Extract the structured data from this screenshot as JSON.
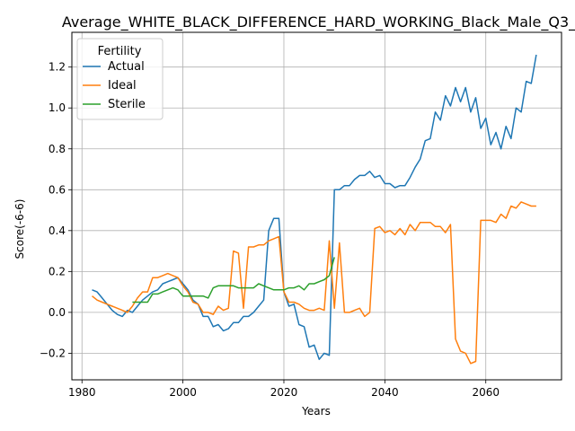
{
  "chart_data": {
    "type": "line",
    "title": "Average_WHITE_BLACK_DIFFERENCE_HARD_WORKING_Black_Male_Q3_",
    "xlabel": "Years",
    "ylabel": "Score(-6-6)",
    "xlim": [
      1978,
      2075
    ],
    "ylim": [
      -0.33,
      1.37
    ],
    "x_ticks": [
      1980,
      2000,
      2020,
      2040,
      2060
    ],
    "y_ticks": [
      -0.2,
      0.0,
      0.2,
      0.4,
      0.6,
      0.8,
      1.0,
      1.2
    ],
    "grid": true,
    "legend": {
      "title": "Fertility",
      "placement": "top-left"
    },
    "series": [
      {
        "name": "Actual",
        "color": "#1f77b4",
        "x": [
          1982,
          1983,
          1984,
          1985,
          1986,
          1987,
          1988,
          1989,
          1990,
          1991,
          1992,
          1993,
          1994,
          1995,
          1996,
          1997,
          1998,
          1999,
          2000,
          2001,
          2002,
          2003,
          2004,
          2005,
          2006,
          2007,
          2008,
          2009,
          2010,
          2011,
          2012,
          2013,
          2014,
          2015,
          2016,
          2017,
          2018,
          2019,
          2020,
          2021,
          2022,
          2023,
          2024,
          2025,
          2026,
          2027,
          2028,
          2029,
          2030,
          2031,
          2032,
          2033,
          2034,
          2035,
          2036,
          2037,
          2038,
          2039,
          2040,
          2041,
          2042,
          2043,
          2044,
          2045,
          2046,
          2047,
          2048,
          2049,
          2050,
          2051,
          2052,
          2053,
          2054,
          2055,
          2056,
          2057,
          2058,
          2059,
          2060,
          2061,
          2062,
          2063,
          2064,
          2065,
          2066,
          2067,
          2068,
          2069,
          2070
        ],
        "values": [
          0.11,
          0.1,
          0.07,
          0.04,
          0.01,
          -0.01,
          -0.02,
          0.01,
          0.0,
          0.03,
          0.06,
          0.08,
          0.1,
          0.11,
          0.14,
          0.15,
          0.16,
          0.17,
          0.14,
          0.11,
          0.06,
          0.04,
          -0.02,
          -0.02,
          -0.07,
          -0.06,
          -0.09,
          -0.08,
          -0.05,
          -0.05,
          -0.02,
          -0.02,
          0.0,
          0.03,
          0.06,
          0.4,
          0.46,
          0.46,
          0.1,
          0.03,
          0.04,
          -0.06,
          -0.07,
          -0.17,
          -0.16,
          -0.23,
          -0.2,
          -0.21,
          0.6,
          0.6,
          0.62,
          0.62,
          0.65,
          0.67,
          0.67,
          0.69,
          0.66,
          0.67,
          0.63,
          0.63,
          0.61,
          0.62,
          0.62,
          0.66,
          0.71,
          0.75,
          0.84,
          0.85,
          0.98,
          0.94,
          1.06,
          1.01,
          1.1,
          1.03,
          1.1,
          0.98,
          1.05,
          0.9,
          0.95,
          0.82,
          0.88,
          0.8,
          0.91,
          0.85,
          1.0,
          0.98,
          1.13,
          1.12,
          1.26
        ]
      },
      {
        "name": "Ideal",
        "color": "#ff7f0e",
        "x": [
          1982,
          1983,
          1984,
          1985,
          1986,
          1987,
          1988,
          1989,
          1990,
          1991,
          1992,
          1993,
          1994,
          1995,
          1996,
          1997,
          1998,
          1999,
          2000,
          2001,
          2002,
          2003,
          2004,
          2005,
          2006,
          2007,
          2008,
          2009,
          2010,
          2011,
          2012,
          2013,
          2014,
          2015,
          2016,
          2017,
          2018,
          2019,
          2020,
          2021,
          2022,
          2023,
          2024,
          2025,
          2026,
          2027,
          2028,
          2029,
          2030,
          2031,
          2032,
          2033,
          2034,
          2035,
          2036,
          2037,
          2038,
          2039,
          2040,
          2041,
          2042,
          2043,
          2044,
          2045,
          2046,
          2047,
          2048,
          2049,
          2050,
          2051,
          2052,
          2053,
          2054,
          2055,
          2056,
          2057,
          2058,
          2059,
          2060,
          2061,
          2062,
          2063,
          2064,
          2065,
          2066,
          2067,
          2068,
          2069,
          2070
        ],
        "values": [
          0.08,
          0.06,
          0.05,
          0.04,
          0.03,
          0.02,
          0.01,
          0.0,
          0.03,
          0.07,
          0.1,
          0.1,
          0.17,
          0.17,
          0.18,
          0.19,
          0.18,
          0.17,
          0.13,
          0.1,
          0.05,
          0.04,
          0.0,
          0.0,
          -0.01,
          0.03,
          0.01,
          0.02,
          0.3,
          0.29,
          0.02,
          0.32,
          0.32,
          0.33,
          0.33,
          0.35,
          0.36,
          0.37,
          0.1,
          0.05,
          0.05,
          0.04,
          0.02,
          0.01,
          0.01,
          0.02,
          0.01,
          0.35,
          0.02,
          0.34,
          0.0,
          0.0,
          0.01,
          0.02,
          -0.02,
          0.0,
          0.41,
          0.42,
          0.39,
          0.4,
          0.38,
          0.41,
          0.38,
          0.43,
          0.4,
          0.44,
          0.44,
          0.44,
          0.42,
          0.42,
          0.39,
          0.43,
          -0.13,
          -0.19,
          -0.2,
          -0.25,
          -0.24,
          0.45,
          0.45,
          0.45,
          0.44,
          0.48,
          0.46,
          0.52,
          0.51,
          0.54,
          0.53,
          0.52,
          0.52
        ]
      },
      {
        "name": "Sterile",
        "color": "#2ca02c",
        "x": [
          1990,
          1991,
          1992,
          1993,
          1994,
          1995,
          1996,
          1997,
          1998,
          1999,
          2000,
          2001,
          2002,
          2003,
          2004,
          2005,
          2006,
          2007,
          2008,
          2009,
          2010,
          2011,
          2012,
          2013,
          2014,
          2015,
          2016,
          2017,
          2018,
          2019,
          2020,
          2021,
          2022,
          2023,
          2024,
          2025,
          2026,
          2027,
          2028,
          2029,
          2030
        ],
        "values": [
          0.05,
          0.05,
          0.05,
          0.05,
          0.09,
          0.09,
          0.1,
          0.11,
          0.12,
          0.11,
          0.08,
          0.08,
          0.08,
          0.08,
          0.08,
          0.07,
          0.12,
          0.13,
          0.13,
          0.13,
          0.13,
          0.12,
          0.12,
          0.12,
          0.12,
          0.14,
          0.13,
          0.12,
          0.11,
          0.11,
          0.11,
          0.12,
          0.12,
          0.13,
          0.11,
          0.14,
          0.14,
          0.15,
          0.16,
          0.18,
          0.27
        ]
      }
    ]
  }
}
